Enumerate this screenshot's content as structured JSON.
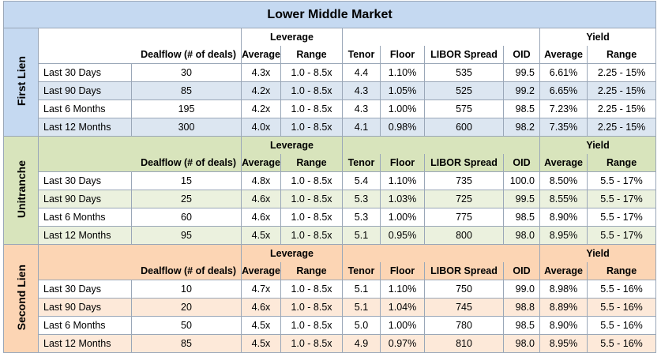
{
  "title": "Lower Middle Market",
  "headers": {
    "leverage": "Leverage",
    "yield": "Yield",
    "dealflow": "Dealflow (# of deals)",
    "average": "Average",
    "range": "Range",
    "tenor": "Tenor",
    "floor": "Floor",
    "libor_spread": "LIBOR Spread",
    "oid": "OID",
    "yield_average": "Average",
    "yield_range": "Range"
  },
  "sections": [
    {
      "name": "First Lien",
      "rows": [
        {
          "period": "Last 30 Days",
          "dealflow": "30",
          "lev_avg": "4.3x",
          "lev_range": "1.0 - 8.5x",
          "tenor": "4.4",
          "floor": "1.10%",
          "libor": "535",
          "oid": "99.5",
          "yield_avg": "6.61%",
          "yield_range": "2.25 - 15%"
        },
        {
          "period": "Last 90 Days",
          "dealflow": "85",
          "lev_avg": "4.2x",
          "lev_range": "1.0 - 8.5x",
          "tenor": "4.3",
          "floor": "1.05%",
          "libor": "525",
          "oid": "99.2",
          "yield_avg": "6.65%",
          "yield_range": "2.25 - 15%"
        },
        {
          "period": "Last 6 Months",
          "dealflow": "195",
          "lev_avg": "4.2x",
          "lev_range": "1.0 - 8.5x",
          "tenor": "4.3",
          "floor": "1.00%",
          "libor": "575",
          "oid": "98.5",
          "yield_avg": "7.23%",
          "yield_range": "2.25 - 15%"
        },
        {
          "period": "Last 12 Months",
          "dealflow": "300",
          "lev_avg": "4.0x",
          "lev_range": "1.0 - 8.5x",
          "tenor": "4.1",
          "floor": "0.98%",
          "libor": "600",
          "oid": "98.2",
          "yield_avg": "7.35%",
          "yield_range": "2.25 - 15%"
        }
      ]
    },
    {
      "name": "Unitranche",
      "rows": [
        {
          "period": "Last 30 Days",
          "dealflow": "15",
          "lev_avg": "4.8x",
          "lev_range": "1.0 - 8.5x",
          "tenor": "5.4",
          "floor": "1.10%",
          "libor": "735",
          "oid": "100.0",
          "yield_avg": "8.50%",
          "yield_range": "5.5 - 17%"
        },
        {
          "period": "Last 90 Days",
          "dealflow": "25",
          "lev_avg": "4.6x",
          "lev_range": "1.0 - 8.5x",
          "tenor": "5.3",
          "floor": "1.03%",
          "libor": "725",
          "oid": "99.5",
          "yield_avg": "8.55%",
          "yield_range": "5.5 - 17%"
        },
        {
          "period": "Last 6 Months",
          "dealflow": "60",
          "lev_avg": "4.6x",
          "lev_range": "1.0 - 8.5x",
          "tenor": "5.3",
          "floor": "1.00%",
          "libor": "775",
          "oid": "98.5",
          "yield_avg": "8.90%",
          "yield_range": "5.5 - 17%"
        },
        {
          "period": "Last 12 Months",
          "dealflow": "95",
          "lev_avg": "4.5x",
          "lev_range": "1.0 - 8.5x",
          "tenor": "5.1",
          "floor": "0.95%",
          "libor": "800",
          "oid": "98.0",
          "yield_avg": "8.95%",
          "yield_range": "5.5 - 17%"
        }
      ]
    },
    {
      "name": "Second Lien",
      "rows": [
        {
          "period": "Last 30 Days",
          "dealflow": "10",
          "lev_avg": "4.7x",
          "lev_range": "1.0 - 8.5x",
          "tenor": "5.1",
          "floor": "1.10%",
          "libor": "750",
          "oid": "99.0",
          "yield_avg": "8.98%",
          "yield_range": "5.5 - 16%"
        },
        {
          "period": "Last 90 Days",
          "dealflow": "20",
          "lev_avg": "4.6x",
          "lev_range": "1.0 - 8.5x",
          "tenor": "5.1",
          "floor": "1.04%",
          "libor": "745",
          "oid": "98.8",
          "yield_avg": "8.89%",
          "yield_range": "5.5 - 16%"
        },
        {
          "period": "Last 6 Months",
          "dealflow": "50",
          "lev_avg": "4.5x",
          "lev_range": "1.0 - 8.5x",
          "tenor": "5.0",
          "floor": "1.00%",
          "libor": "780",
          "oid": "98.5",
          "yield_avg": "8.90%",
          "yield_range": "5.5 - 16%"
        },
        {
          "period": "Last 12 Months",
          "dealflow": "85",
          "lev_avg": "4.5x",
          "lev_range": "1.0 - 8.5x",
          "tenor": "4.9",
          "floor": "0.97%",
          "libor": "810",
          "oid": "98.0",
          "yield_avg": "8.95%",
          "yield_range": "5.5 - 16%"
        }
      ]
    }
  ]
}
